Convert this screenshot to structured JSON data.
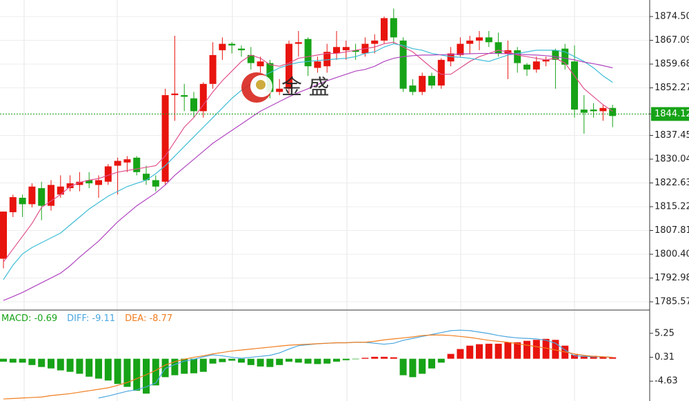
{
  "chart_data": [
    {
      "type": "candlestick",
      "watermark": "金 盛",
      "up_color": "#e8140e",
      "down_color": "#17a317",
      "ylim": [
        1783.0,
        1879.66
      ],
      "yticks": [
        {
          "value": 1874.5,
          "label": "1874.50"
        },
        1867.09,
        1859.68,
        1852.27,
        1844.12,
        1837.45,
        1830.04,
        1822.63,
        1815.22,
        1807.81,
        {
          "value": 1800.4,
          "label": "1800.40"
        },
        1792.98,
        1785.57
      ],
      "current": {
        "value": 1844.12,
        "color": "#17a317"
      },
      "grid": true,
      "open": [
        1799,
        1813.5,
        1818,
        1816,
        1821,
        1815.5,
        1819,
        1821,
        1822,
        1823.5,
        1822,
        1823,
        1828,
        1829,
        1830.5,
        1825.5,
        1823.5,
        1823,
        1850,
        1850,
        1849,
        1845,
        1853.5,
        1864,
        1866,
        1864.5,
        1862.5,
        1859,
        1860,
        1851,
        1852,
        1866,
        1867.5,
        1858.5,
        1859,
        1863,
        1864,
        1864,
        1863,
        1866,
        1867,
        1874,
        1867,
        1853,
        1851,
        1856,
        1853,
        1860.5,
        1862.5,
        1866,
        1867,
        1868,
        1866.5,
        1863,
        1864,
        1859.5,
        1858,
        1860.5,
        1864,
        1864.5,
        1860.5,
        1845.5,
        1845.5,
        1845,
        1846
      ],
      "high": [
        1813.7,
        1819,
        1819,
        1822.5,
        1823,
        1823.5,
        1825,
        1825,
        1826,
        1826,
        1825,
        1828.5,
        1830.5,
        1831,
        1831,
        1828,
        1825,
        1852,
        1868.5,
        1853.5,
        1851,
        1854,
        1866.5,
        1868,
        1866.5,
        1865.5,
        1865,
        1862,
        1861,
        1855,
        1867,
        1870,
        1868,
        1862,
        1866,
        1870,
        1867,
        1866,
        1868,
        1869,
        1874.5,
        1877,
        1868,
        1855,
        1857,
        1857,
        1861.5,
        1865,
        1868,
        1868.5,
        1870,
        1870,
        1869.5,
        1867,
        1865,
        1860,
        1862,
        1862,
        1864.5,
        1866,
        1865.5,
        1850,
        1847.5,
        1847,
        1847
      ],
      "low": [
        1796,
        1812,
        1812,
        1815,
        1811,
        1814,
        1818,
        1820,
        1820,
        1821,
        1818,
        1822,
        1819,
        1826,
        1825,
        1822,
        1820,
        1822,
        1842,
        1845,
        1843,
        1843,
        1852,
        1861,
        1863,
        1862,
        1858,
        1857,
        1849,
        1850,
        1850,
        1862,
        1856,
        1857,
        1857,
        1861,
        1861,
        1861,
        1862,
        1863,
        1866,
        1866,
        1851,
        1850,
        1850,
        1852,
        1852,
        1859,
        1862,
        1863,
        1864,
        1865,
        1862,
        1855,
        1857,
        1856,
        1857,
        1859,
        1852,
        1858,
        1843,
        1838,
        1843,
        1842,
        1840
      ],
      "close": [
        1813.7,
        1818.2,
        1816,
        1821.5,
        1815.5,
        1822,
        1821.5,
        1822.5,
        1823,
        1822.5,
        1823.5,
        1827.8,
        1829.5,
        1830,
        1826,
        1823.5,
        1821.5,
        1850,
        1850.5,
        1849.5,
        1845,
        1853.5,
        1862.5,
        1866,
        1865.5,
        1864,
        1860,
        1860.5,
        1851,
        1852,
        1866,
        1866.5,
        1859,
        1860.5,
        1863.5,
        1865,
        1865,
        1863.5,
        1866,
        1867,
        1874,
        1868,
        1852,
        1851,
        1856,
        1853,
        1861,
        1863,
        1866,
        1867,
        1868,
        1866.5,
        1863,
        1864,
        1860,
        1858,
        1860.5,
        1861,
        1861,
        1859.5,
        1845.5,
        1844.5,
        1845,
        1846,
        1843.5
      ],
      "lines": [
        {
          "color": "#e0508c",
          "values": [
            1798,
            1802,
            1806,
            1810,
            1815,
            1817,
            1819,
            1821.5,
            1822.8,
            1823.5,
            1824,
            1825,
            1826,
            1826.5,
            1827,
            1827.5,
            1828,
            1831,
            1835.5,
            1840,
            1843,
            1847,
            1851,
            1854.5,
            1857.5,
            1860.5,
            1862.5,
            1861.5,
            1859.5,
            1859,
            1860,
            1861.5,
            1862,
            1862.5,
            1863,
            1863,
            1863.5,
            1864,
            1864.5,
            1865,
            1866,
            1866.5,
            1865,
            1863.5,
            1861,
            1858.5,
            1856.5,
            1856.5,
            1858.5,
            1860.5,
            1862,
            1863,
            1864,
            1863.5,
            1862.5,
            1862,
            1861.5,
            1861,
            1861.5,
            1860,
            1856,
            1852,
            1849.5,
            1847,
            1845
          ]
        },
        {
          "color": "#3cbcd6",
          "values": [
            1792.5,
            1797,
            1800.5,
            1802.5,
            1804,
            1805.5,
            1807,
            1809.5,
            1812,
            1814.5,
            1816.5,
            1818.5,
            1820,
            1821.5,
            1822.5,
            1823.5,
            1825.5,
            1828,
            1831,
            1834,
            1837,
            1840,
            1843,
            1846,
            1849,
            1851.5,
            1853.5,
            1855.5,
            1857,
            1858.5,
            1859.5,
            1860.2,
            1860.5,
            1860.8,
            1861,
            1861.3,
            1861.5,
            1862,
            1863,
            1863.5,
            1865,
            1866,
            1865.5,
            1864.5,
            1864,
            1863,
            1862.5,
            1862,
            1861.8,
            1861.5,
            1861,
            1860.5,
            1861.5,
            1862.5,
            1863,
            1863.5,
            1864,
            1864,
            1864,
            1863.5,
            1862,
            1860.5,
            1858.5,
            1856,
            1854
          ]
        },
        {
          "color": "#b045c0",
          "values": [
            1786,
            1787.2,
            1788.5,
            1790,
            1791.5,
            1793,
            1794.5,
            1796.8,
            1799.5,
            1802,
            1804.5,
            1807.5,
            1810.5,
            1813,
            1815.5,
            1817.5,
            1819.5,
            1822,
            1825,
            1827.5,
            1830,
            1832.5,
            1835,
            1837,
            1839,
            1841,
            1843,
            1845,
            1846.5,
            1848,
            1849.5,
            1850.8,
            1852,
            1853.3,
            1854.5,
            1855.5,
            1856.5,
            1857.5,
            1858,
            1859,
            1860.5,
            1861.5,
            1862,
            1862.3,
            1862.5,
            1862.5,
            1862.6,
            1862.7,
            1862.8,
            1862.9,
            1863,
            1863,
            1863,
            1862.9,
            1862.8,
            1862.6,
            1862.5,
            1862.3,
            1862,
            1861.5,
            1861,
            1860.3,
            1859.8,
            1859.2,
            1858.5
          ]
        }
      ]
    },
    {
      "type": "macd",
      "ylim": [
        -8.72,
        10.05
      ],
      "yticks": [
        5.25,
        0.31,
        -4.63
      ],
      "histogram": {
        "name": "MACD: -0.69",
        "color": "#17a317",
        "up_color": "#e8140e",
        "values": [
          -0.6,
          -0.8,
          -0.8,
          -1.3,
          -1.7,
          -2.0,
          -2.4,
          -2.7,
          -3.1,
          -3.7,
          -4.1,
          -4.5,
          -5.2,
          -5.8,
          -6.6,
          -7.2,
          -5.5,
          -3.8,
          -3.4,
          -3.1,
          -3.0,
          -2.7,
          -1.0,
          -0.7,
          -0.4,
          -0.8,
          -1.3,
          -1.6,
          -1.7,
          -1.3,
          -0.6,
          -0.8,
          -1.0,
          -1.1,
          -1.0,
          -0.6,
          -0.3,
          -0.1,
          0.2,
          0.4,
          0.4,
          0.3,
          -3.4,
          -3.8,
          -3.1,
          -2.0,
          -0.8,
          1.0,
          2.0,
          2.7,
          3.0,
          3.1,
          3.1,
          3.4,
          3.4,
          3.7,
          3.9,
          4.1,
          3.9,
          2.7,
          0.8,
          0.6,
          0.6,
          0.4,
          0.3
        ]
      },
      "series": [
        {
          "name": "DIFF: -9.11",
          "color": "#4aa6e0",
          "values": [
            null,
            null,
            null,
            null,
            null,
            null,
            null,
            null,
            null,
            null,
            -8.1,
            -7.7,
            -7.2,
            -6.7,
            -6.4,
            -5.8,
            -5.0,
            -2.0,
            -1.2,
            -0.5,
            -0.1,
            0.4,
            0.8,
            0.6,
            0.3,
            0.1,
            0.3,
            0.5,
            0.7,
            1.2,
            2.0,
            2.7,
            2.9,
            3.1,
            3.2,
            3.3,
            3.3,
            3.4,
            3.4,
            3.2,
            3.0,
            3.2,
            3.8,
            4.2,
            4.6,
            5.0,
            5.4,
            5.8,
            5.9,
            5.8,
            5.5,
            5.2,
            4.8,
            4.5,
            4.3,
            4.2,
            4.1,
            3.8,
            3.2,
            1.8,
            0.6,
            0.5,
            0.4,
            0.4,
            0.3
          ]
        },
        {
          "name": "DEA: -8.77",
          "color": "#f07d1e",
          "values": [
            -8.3,
            -8.2,
            -8.1,
            -8.0,
            -7.9,
            -7.6,
            -7.4,
            -7.2,
            -6.9,
            -6.6,
            -6.3,
            -6.0,
            -5.5,
            -4.9,
            -4.1,
            -3.3,
            -2.4,
            -1.3,
            -0.6,
            -0.1,
            0.3,
            0.6,
            1.0,
            1.3,
            1.6,
            1.8,
            2.0,
            2.2,
            2.4,
            2.6,
            2.8,
            2.9,
            3.0,
            3.1,
            3.2,
            3.3,
            3.3,
            3.4,
            3.4,
            3.6,
            3.9,
            4.1,
            4.3,
            4.5,
            4.8,
            4.9,
            4.9,
            4.8,
            4.6,
            4.4,
            4.1,
            3.8,
            3.6,
            3.4,
            3.1,
            2.8,
            2.5,
            2.2,
            1.8,
            1.4,
            1.0,
            0.7,
            0.5,
            0.4,
            0.3
          ]
        }
      ]
    }
  ]
}
